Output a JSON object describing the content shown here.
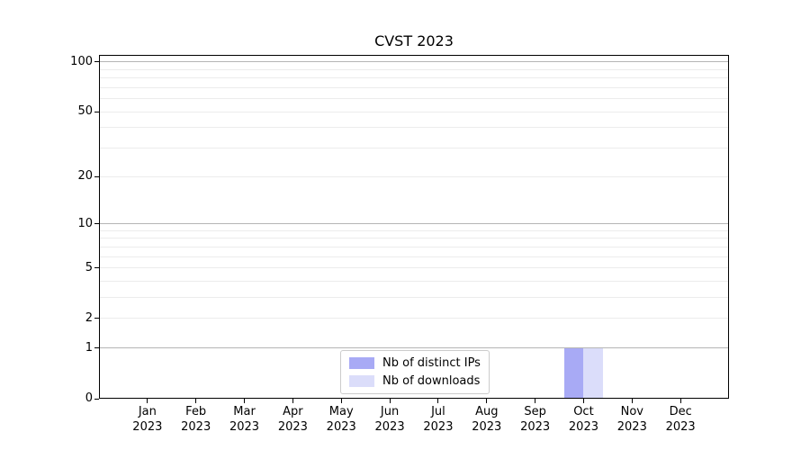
{
  "colors": {
    "background": "#ffffff",
    "spine": "#000000",
    "text": "#000000",
    "grid_major": "#b5b5b5",
    "grid_minor": "#ececec",
    "legend_border": "#cccccc",
    "bar_distinct_ips": "#a8aaf5",
    "bar_downloads": "#dbddfa"
  },
  "chart_data": {
    "type": "bar",
    "title": "CVST 2023",
    "x": {
      "months": [
        "Jan",
        "Feb",
        "Mar",
        "Apr",
        "May",
        "Jun",
        "Jul",
        "Aug",
        "Sep",
        "Oct",
        "Nov",
        "Dec"
      ],
      "year": "2023"
    },
    "categories": [
      "Jan 2023",
      "Feb 2023",
      "Mar 2023",
      "Apr 2023",
      "May 2023",
      "Jun 2023",
      "Jul 2023",
      "Aug 2023",
      "Sep 2023",
      "Oct 2023",
      "Nov 2023",
      "Dec 2023"
    ],
    "series": [
      {
        "name": "Nb of distinct IPs",
        "color": "#a8aaf5",
        "values": [
          0,
          0,
          0,
          0,
          0,
          0,
          0,
          0,
          0,
          1,
          0,
          0
        ]
      },
      {
        "name": "Nb of downloads",
        "color": "#dbddfa",
        "values": [
          0,
          0,
          0,
          0,
          0,
          0,
          0,
          0,
          0,
          1,
          0,
          0
        ]
      }
    ],
    "y_scale": "log1p",
    "ylim": [
      0,
      110
    ],
    "y_ticks": [
      0,
      1,
      2,
      5,
      10,
      20,
      50,
      100
    ],
    "gridlines": {
      "major": [
        1,
        10,
        100
      ],
      "minor": [
        2,
        3,
        4,
        5,
        6,
        7,
        8,
        9,
        20,
        30,
        40,
        50,
        60,
        70,
        80,
        90
      ]
    },
    "grid": true,
    "legend": {
      "position": "lower center",
      "entries": [
        "Nb of distinct IPs",
        "Nb of downloads"
      ]
    },
    "xlabel": "",
    "ylabel": ""
  }
}
